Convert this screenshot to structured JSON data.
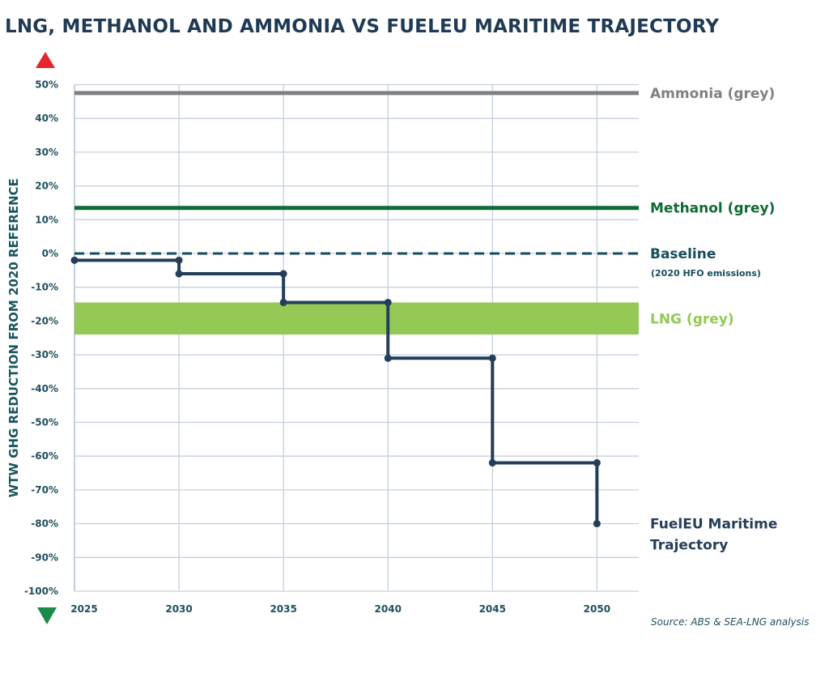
{
  "title": "LNG, METHANOL AND AMMONIA VS FUELEU MARITIME TRAJECTORY",
  "source": "Source: ABS & SEA-LNG analysis",
  "chart_data": {
    "type": "line",
    "title": "LNG, METHANOL AND AMMONIA VS FUELEU MARITIME TRAJECTORY",
    "ylabel": "WTW GHG REDUCTION FROM 2020 REFERENCE",
    "xlabel": "",
    "ylim": [
      -100,
      50
    ],
    "xlim": [
      2025,
      2052
    ],
    "grid": true,
    "x_ticks": [
      2025,
      2030,
      2035,
      2040,
      2045,
      2050
    ],
    "x_tick_labels": [
      "2025",
      "2030",
      "2035",
      "2040",
      "2045",
      "2050"
    ],
    "y_ticks": [
      50,
      40,
      30,
      20,
      10,
      0,
      -10,
      -20,
      -30,
      -40,
      -50,
      -60,
      -70,
      -80,
      -90,
      -100
    ],
    "y_tick_labels": [
      "50%",
      "40%",
      "30%",
      "20%",
      "10%",
      "0%",
      "-10%",
      "-20%",
      "-30%",
      "-40%",
      "-50%",
      "-60%",
      "-70%",
      "-80%",
      "-90%",
      "-100%"
    ],
    "arrows": {
      "up_color": "#e8242b",
      "down_color": "#1a8a4a"
    },
    "series": [
      {
        "name": "Ammonia (grey)",
        "kind": "hline",
        "value": 47.5,
        "color": "#808080"
      },
      {
        "name": "Methanol (grey)",
        "kind": "hline",
        "value": 13.5,
        "color": "#0f6b35"
      },
      {
        "name": "Baseline",
        "sublabel": "(2020 HFO emissions)",
        "kind": "hline-dashed",
        "value": 0,
        "color": "#174c5c"
      },
      {
        "name": "LNG (grey)",
        "kind": "band",
        "range": [
          -14.5,
          -24
        ],
        "color": "#93c954"
      },
      {
        "name": "FuelEU Maritime Trajectory",
        "kind": "step",
        "color": "#243e5a",
        "points": [
          [
            2025,
            -2
          ],
          [
            2030,
            -2
          ],
          [
            2030,
            -6
          ],
          [
            2035,
            -6
          ],
          [
            2035,
            -14.5
          ],
          [
            2040,
            -14.5
          ],
          [
            2040,
            -31
          ],
          [
            2045,
            -31
          ],
          [
            2045,
            -62
          ],
          [
            2050,
            -62
          ],
          [
            2050,
            -80
          ]
        ]
      }
    ]
  }
}
